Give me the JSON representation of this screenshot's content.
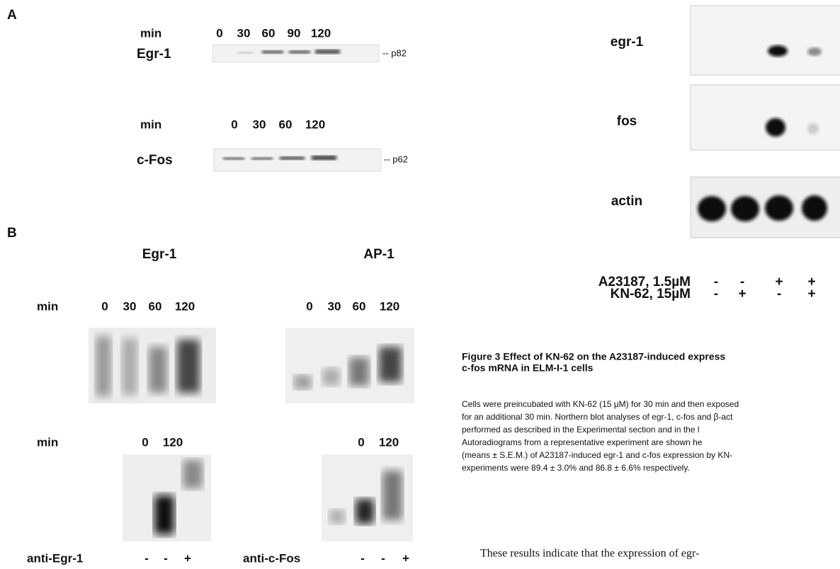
{
  "panel_a": {
    "label": "A",
    "blots": [
      {
        "time_label": "min",
        "times": [
          "0",
          "30",
          "60",
          "90",
          "120"
        ],
        "protein": "Egr-1",
        "marker": "-- p82"
      },
      {
        "time_label": "min",
        "times": [
          "0",
          "30",
          "60",
          "120"
        ],
        "protein": "c-Fos",
        "marker": "-- p62"
      }
    ]
  },
  "panel_b": {
    "label": "B",
    "time_label": "min",
    "gels": [
      {
        "title": "Egr-1",
        "times": [
          "0",
          "30",
          "60",
          "120"
        ],
        "supershift_times": [
          "0",
          "120"
        ],
        "antibody": "anti-Egr-1",
        "antibody_signs": [
          "-",
          "-",
          "+"
        ]
      },
      {
        "title": "AP-1",
        "times": [
          "0",
          "30",
          "60",
          "120"
        ],
        "supershift_times": [
          "0",
          "120"
        ],
        "antibody": "anti-c-Fos",
        "antibody_signs": [
          "-",
          "-",
          "+"
        ]
      }
    ]
  },
  "northern": {
    "probes": [
      "egr-1",
      "fos",
      "actin"
    ],
    "treatments": [
      {
        "name": "A23187, 1.5µM",
        "signs": [
          "-",
          "-",
          "+",
          "+"
        ]
      },
      {
        "name": "KN-62, 15µM",
        "signs": [
          "-",
          "+",
          "-",
          "+"
        ]
      }
    ]
  },
  "caption": {
    "title_lines": [
      "Figure 3    Effect of KN-62 on the A23187-induced express",
      "c-fos mRNA in ELM-I-1 cells"
    ],
    "body_lines": [
      "Cells were preincubated with KN-62 (15 μM) for 30 min and then exposed",
      "for an additional 30 min. Northern blot analyses of egr-1, c-fos and β-act",
      "performed as described in the Experimental section and in the l",
      "Autoradiograms from a representative experiment are shown he",
      "(means ± S.E.M.) of A23187-induced egr-1 and c-fos expression by KN-",
      "experiments were 89.4 ± 3.0% and 86.8 ± 6.6% respectively."
    ]
  },
  "body_text": "These results indicate that the expression of egr-"
}
